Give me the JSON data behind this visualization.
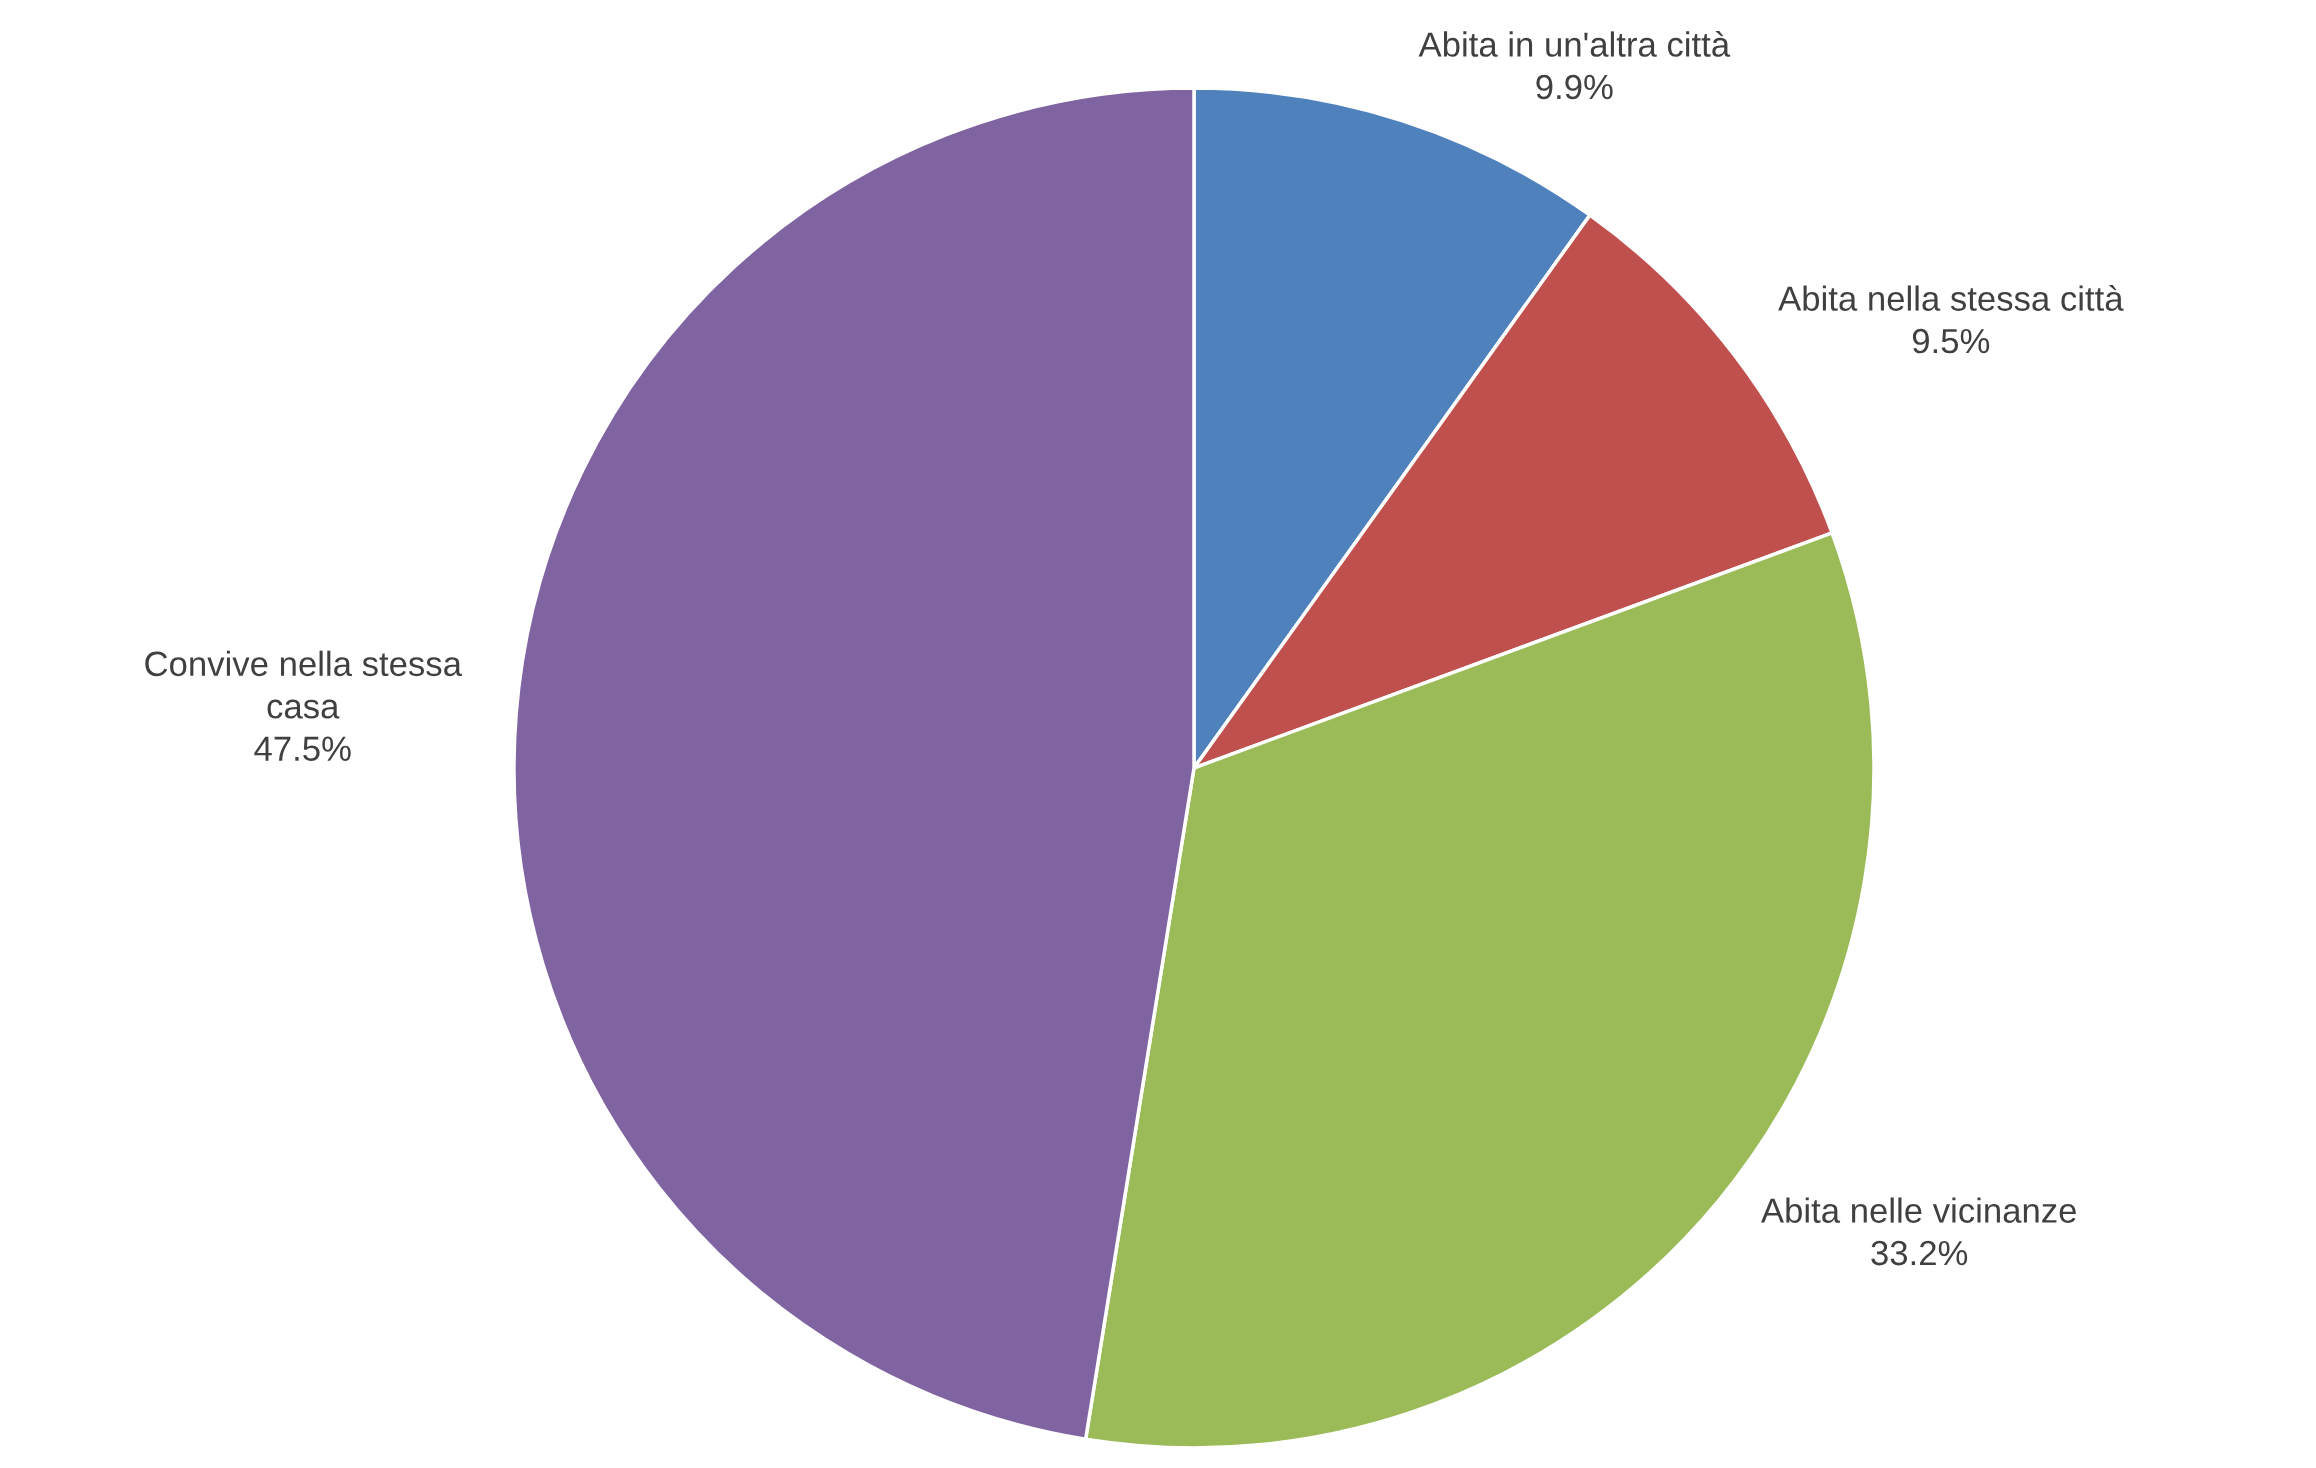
{
  "chart_data": {
    "type": "pie",
    "categories": [
      "Abita in un'altra città",
      "Abita nella stessa città",
      "Abita nelle vicinanze",
      "Convive nella stessa\ncasa"
    ],
    "values": [
      9.9,
      9.5,
      33.2,
      47.5
    ],
    "value_labels": [
      "9.9%",
      "9.5%",
      "33.2%",
      "47.5%"
    ],
    "colors": [
      "#4f81bd",
      "#c0504d",
      "#9bbb59",
      "#8064a2"
    ],
    "legend": false
  }
}
